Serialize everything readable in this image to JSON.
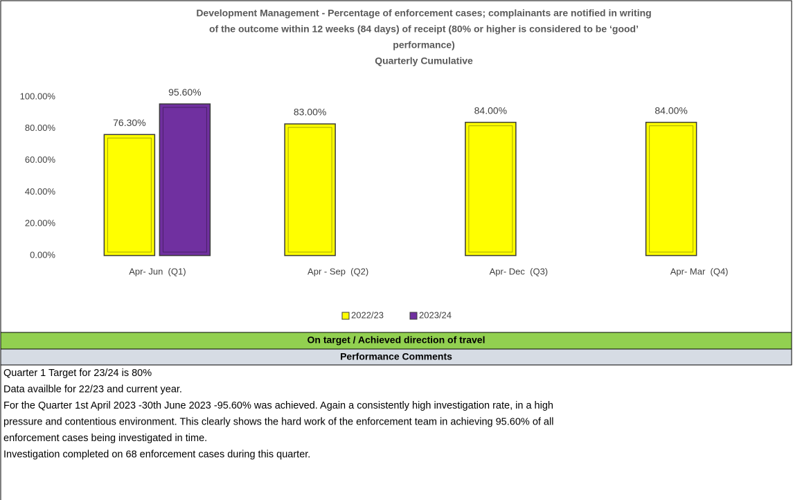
{
  "chart_data": {
    "type": "bar",
    "title_lines": [
      "Development Management - Percentage of enforcement cases; complainants are notified in writing",
      "of the outcome within 12 weeks (84 days) of receipt (80% or higher is considered to be ‘good’",
      "performance)"
    ],
    "subtitle": "Quarterly Cumulative",
    "categories": [
      "Apr- Jun  (Q1)",
      "Apr - Sep  (Q2)",
      "Apr- Dec  (Q3)",
      "Apr- Mar  (Q4)"
    ],
    "series": [
      {
        "name": "2022/23",
        "color": "#ffff00",
        "values": [
          76.3,
          83.0,
          84.0,
          84.0
        ],
        "value_labels": [
          "76.30%",
          "83.00%",
          "84.00%",
          "84.00%"
        ]
      },
      {
        "name": "2023/24",
        "color": "#7030a0",
        "values": [
          95.6,
          null,
          null,
          null
        ],
        "value_labels": [
          "95.60%",
          null,
          null,
          null
        ]
      }
    ],
    "ylim": [
      0,
      100
    ],
    "yticks": [
      {
        "value": 0,
        "label": "0.00%"
      },
      {
        "value": 20,
        "label": "20.00%"
      },
      {
        "value": 40,
        "label": "40.00%"
      },
      {
        "value": 60,
        "label": "60.00%"
      },
      {
        "value": 80,
        "label": "80.00%"
      },
      {
        "value": 100,
        "label": "100.00%"
      }
    ],
    "legend": "bottom"
  },
  "status": "On target / Achieved direction of travel",
  "comments": {
    "heading": "Performance Comments",
    "lines": [
      "Quarter 1 Target for 23/24 is 80%",
      "Data availble for 22/23 and current year.",
      "For the Quarter 1st April 2023 -30th June 2023 -95.60% was achieved. Again a consistently high investigation rate, in a high",
      "pressure and contentious environment. This clearly shows the hard work of the enforcement team in achieving 95.60% of all",
      "enforcement cases being investigated in time.",
      "Investigation completed on 68 enforcement cases during this quarter."
    ]
  }
}
